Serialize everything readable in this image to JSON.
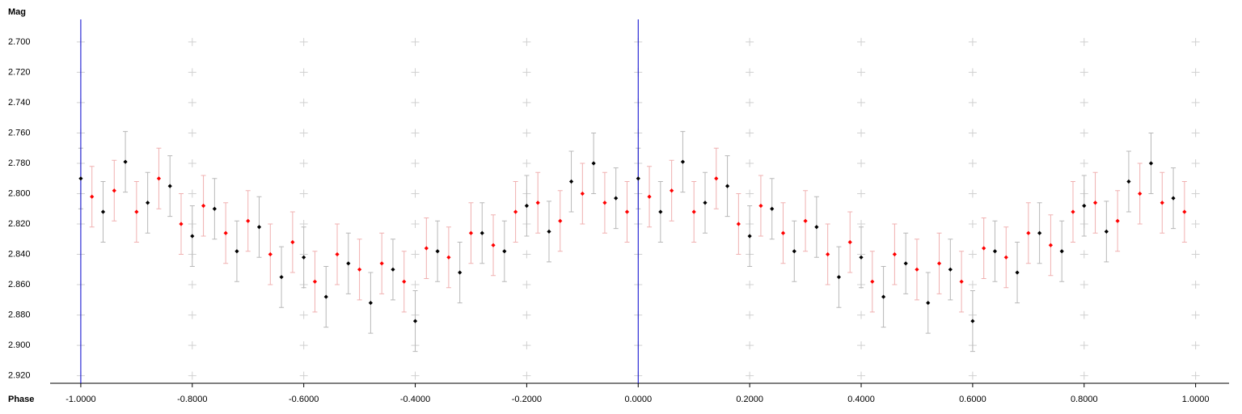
{
  "chart_data": {
    "type": "scatter",
    "y_label": "Mag",
    "x_label": "Phase",
    "xlim": [
      -1.055,
      1.06
    ],
    "ylim": [
      2.925,
      2.683
    ],
    "y_inverted": true,
    "xticks": [
      {
        "value": -1,
        "label": "-1.0000"
      },
      {
        "value": -0.8,
        "label": "-0.8000"
      },
      {
        "value": -0.6,
        "label": "-0.6000"
      },
      {
        "value": -0.4,
        "label": "-0.4000"
      },
      {
        "value": -0.2,
        "label": "-0.2000"
      },
      {
        "value": 0,
        "label": "0.0000"
      },
      {
        "value": 0.2,
        "label": "0.2000"
      },
      {
        "value": 0.4,
        "label": "0.4000"
      },
      {
        "value": 0.6,
        "label": "0.6000"
      },
      {
        "value": 0.8,
        "label": "0.8000"
      },
      {
        "value": 1,
        "label": "1.0000"
      }
    ],
    "yticks": [
      {
        "value": 2.7,
        "label": "2.700"
      },
      {
        "value": 2.72,
        "label": "2.720"
      },
      {
        "value": 2.74,
        "label": "2.740"
      },
      {
        "value": 2.76,
        "label": "2.760"
      },
      {
        "value": 2.78,
        "label": "2.780"
      },
      {
        "value": 2.8,
        "label": "2.800"
      },
      {
        "value": 2.82,
        "label": "2.820"
      },
      {
        "value": 2.84,
        "label": "2.840"
      },
      {
        "value": 2.86,
        "label": "2.860"
      },
      {
        "value": 2.88,
        "label": "2.880"
      },
      {
        "value": 2.9,
        "label": "2.900"
      },
      {
        "value": 2.92,
        "label": "2.920"
      }
    ],
    "grid": true,
    "grid_color": "#d0d0d0",
    "vlines": [
      -1,
      0
    ],
    "vline_color": "#0000cc",
    "series": [
      {
        "color": "#000000",
        "error_color": "#b8b8b8",
        "error": 0.02,
        "x": [
          -1,
          -0.96,
          -0.92,
          -0.88,
          -0.84,
          -0.8,
          -0.76,
          -0.72,
          -0.68,
          -0.64,
          -0.6,
          -0.56,
          -0.52,
          -0.48,
          -0.44,
          -0.4,
          -0.36,
          -0.32,
          -0.28,
          -0.24,
          -0.2,
          -0.16,
          -0.12,
          -0.08,
          -0.04,
          0,
          0.04,
          0.08,
          0.12,
          0.16,
          0.2,
          0.24,
          0.28,
          0.32,
          0.36,
          0.4,
          0.44,
          0.48,
          0.52,
          0.56,
          0.6,
          0.64,
          0.68,
          0.72,
          0.76,
          0.8,
          0.84,
          0.88,
          0.92,
          0.96
        ],
        "values": [
          2.79,
          2.812,
          2.779,
          2.806,
          2.795,
          2.828,
          2.81,
          2.838,
          2.822,
          2.855,
          2.842,
          2.868,
          2.846,
          2.872,
          2.85,
          2.884,
          2.838,
          2.852,
          2.826,
          2.838,
          2.808,
          2.825,
          2.792,
          2.78,
          2.803,
          2.79,
          2.812,
          2.779,
          2.806,
          2.795,
          2.828,
          2.81,
          2.838,
          2.822,
          2.855,
          2.842,
          2.868,
          2.846,
          2.872,
          2.85,
          2.884,
          2.838,
          2.852,
          2.826,
          2.838,
          2.808,
          2.825,
          2.792,
          2.78,
          2.803
        ]
      },
      {
        "color": "#ff0000",
        "error_color": "#f0b0b0",
        "error": 0.02,
        "x": [
          -0.98,
          -0.94,
          -0.9,
          -0.86,
          -0.82,
          -0.78,
          -0.74,
          -0.7,
          -0.66,
          -0.62,
          -0.58,
          -0.54,
          -0.5,
          -0.46,
          -0.42,
          -0.38,
          -0.34,
          -0.3,
          -0.26,
          -0.22,
          -0.18,
          -0.14,
          -0.1,
          -0.06,
          -0.02,
          0.02,
          0.06,
          0.1,
          0.14,
          0.18,
          0.22,
          0.26,
          0.3,
          0.34,
          0.38,
          0.42,
          0.46,
          0.5,
          0.54,
          0.58,
          0.62,
          0.66,
          0.7,
          0.74,
          0.78,
          0.82,
          0.86,
          0.9,
          0.94,
          0.98
        ],
        "values": [
          2.802,
          2.798,
          2.812,
          2.79,
          2.82,
          2.808,
          2.826,
          2.818,
          2.84,
          2.832,
          2.858,
          2.84,
          2.85,
          2.846,
          2.858,
          2.836,
          2.842,
          2.826,
          2.834,
          2.812,
          2.806,
          2.818,
          2.8,
          2.806,
          2.812,
          2.802,
          2.798,
          2.812,
          2.79,
          2.82,
          2.808,
          2.826,
          2.818,
          2.84,
          2.832,
          2.858,
          2.84,
          2.85,
          2.846,
          2.858,
          2.836,
          2.842,
          2.826,
          2.834,
          2.812,
          2.806,
          2.818,
          2.8,
          2.806,
          2.812
        ]
      }
    ]
  }
}
